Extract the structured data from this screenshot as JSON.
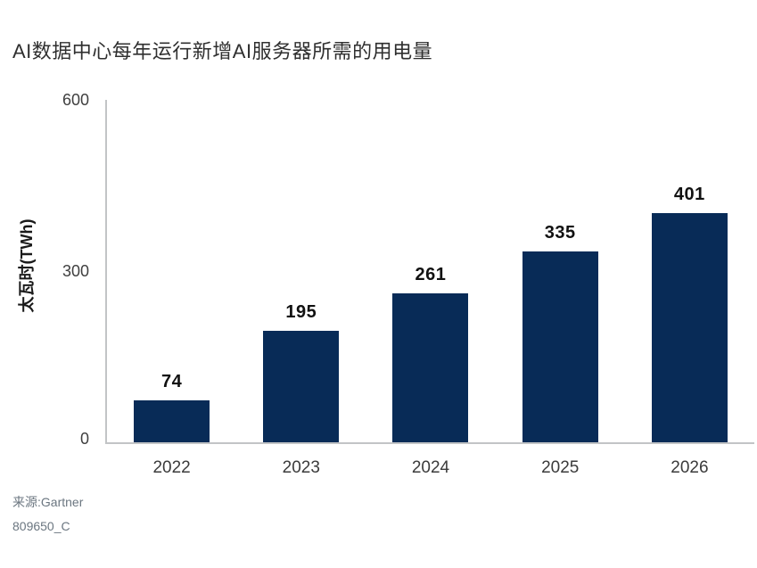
{
  "title": "AI数据中心每年运行新增AI服务器所需的用电量",
  "source": {
    "line1": "来源:Gartner",
    "line2": "809650_C"
  },
  "colors": {
    "bar": "#082b57",
    "axis_line": "#c2c4c6",
    "title_text": "#2f2f2f",
    "tick_text": "#3f3f3f",
    "value_text": "#111111",
    "source_text": "#6b7680",
    "background": "#ffffff"
  },
  "chart_data": {
    "type": "bar",
    "title": "AI数据中心每年运行新增AI服务器所需的用电量",
    "categories": [
      "2022",
      "2023",
      "2024",
      "2025",
      "2026"
    ],
    "values": [
      74,
      195,
      261,
      335,
      401
    ],
    "xlabel": "",
    "ylabel": "太瓦时(TWh)",
    "ylim": [
      0,
      600
    ],
    "yticks": [
      0,
      300,
      600
    ],
    "grid": false,
    "legend": false,
    "value_labels": true,
    "bar_color": "#082b57"
  }
}
